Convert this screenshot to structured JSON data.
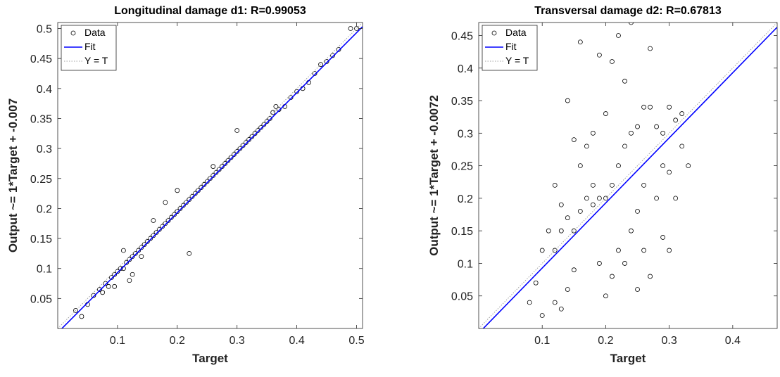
{
  "chart_data": [
    {
      "type": "scatter",
      "title": "Longitudinal damage d1: R=0.99053",
      "xlabel": "Target",
      "ylabel": "Output ~= 1*Target + -0.007",
      "xlim": [
        0,
        0.51
      ],
      "ylim": [
        0,
        0.51
      ],
      "xticks": [
        0.1,
        0.2,
        0.3,
        0.4,
        0.5
      ],
      "yticks": [
        0.05,
        0.1,
        0.15,
        0.2,
        0.25,
        0.3,
        0.35,
        0.4,
        0.45,
        0.5
      ],
      "grid": false,
      "legend_position": "top-left",
      "fit": {
        "slope": 1,
        "intercept": -0.007
      },
      "series": [
        {
          "name": "Data",
          "marker": "open-circle",
          "color": "#000000",
          "points": [
            [
              0.03,
              0.03
            ],
            [
              0.04,
              0.02
            ],
            [
              0.05,
              0.04
            ],
            [
              0.06,
              0.055
            ],
            [
              0.07,
              0.065
            ],
            [
              0.075,
              0.06
            ],
            [
              0.08,
              0.075
            ],
            [
              0.085,
              0.07
            ],
            [
              0.09,
              0.085
            ],
            [
              0.095,
              0.09
            ],
            [
              0.1,
              0.095
            ],
            [
              0.105,
              0.1
            ],
            [
              0.11,
              0.1
            ],
            [
              0.115,
              0.11
            ],
            [
              0.12,
              0.115
            ],
            [
              0.125,
              0.12
            ],
            [
              0.13,
              0.125
            ],
            [
              0.135,
              0.13
            ],
            [
              0.14,
              0.135
            ],
            [
              0.145,
              0.14
            ],
            [
              0.15,
              0.145
            ],
            [
              0.155,
              0.15
            ],
            [
              0.16,
              0.155
            ],
            [
              0.165,
              0.16
            ],
            [
              0.17,
              0.165
            ],
            [
              0.175,
              0.17
            ],
            [
              0.18,
              0.175
            ],
            [
              0.185,
              0.18
            ],
            [
              0.19,
              0.185
            ],
            [
              0.195,
              0.19
            ],
            [
              0.2,
              0.195
            ],
            [
              0.205,
              0.2
            ],
            [
              0.21,
              0.205
            ],
            [
              0.215,
              0.21
            ],
            [
              0.22,
              0.215
            ],
            [
              0.225,
              0.22
            ],
            [
              0.23,
              0.225
            ],
            [
              0.235,
              0.23
            ],
            [
              0.24,
              0.235
            ],
            [
              0.245,
              0.24
            ],
            [
              0.25,
              0.245
            ],
            [
              0.255,
              0.25
            ],
            [
              0.26,
              0.255
            ],
            [
              0.265,
              0.26
            ],
            [
              0.27,
              0.265
            ],
            [
              0.275,
              0.27
            ],
            [
              0.28,
              0.275
            ],
            [
              0.285,
              0.28
            ],
            [
              0.29,
              0.285
            ],
            [
              0.295,
              0.29
            ],
            [
              0.3,
              0.295
            ],
            [
              0.305,
              0.3
            ],
            [
              0.31,
              0.305
            ],
            [
              0.315,
              0.31
            ],
            [
              0.32,
              0.315
            ],
            [
              0.325,
              0.32
            ],
            [
              0.33,
              0.325
            ],
            [
              0.335,
              0.33
            ],
            [
              0.34,
              0.335
            ],
            [
              0.345,
              0.34
            ],
            [
              0.35,
              0.345
            ],
            [
              0.355,
              0.35
            ],
            [
              0.36,
              0.36
            ],
            [
              0.365,
              0.37
            ],
            [
              0.37,
              0.365
            ],
            [
              0.38,
              0.37
            ],
            [
              0.39,
              0.385
            ],
            [
              0.4,
              0.395
            ],
            [
              0.41,
              0.4
            ],
            [
              0.42,
              0.41
            ],
            [
              0.43,
              0.425
            ],
            [
              0.44,
              0.44
            ],
            [
              0.45,
              0.445
            ],
            [
              0.46,
              0.455
            ],
            [
              0.47,
              0.465
            ],
            [
              0.49,
              0.5
            ],
            [
              0.5,
              0.5
            ],
            [
              0.095,
              0.07
            ],
            [
              0.12,
              0.08
            ],
            [
              0.125,
              0.09
            ],
            [
              0.22,
              0.125
            ],
            [
              0.3,
              0.33
            ],
            [
              0.26,
              0.27
            ],
            [
              0.2,
              0.23
            ],
            [
              0.18,
              0.21
            ],
            [
              0.16,
              0.18
            ],
            [
              0.14,
              0.12
            ],
            [
              0.11,
              0.13
            ]
          ]
        }
      ]
    },
    {
      "type": "scatter",
      "title": "Transversal damage d2: R=0.67813",
      "xlabel": "Target",
      "ylabel": "Output ~= 1*Target + -0.0072",
      "xlim": [
        0,
        0.47
      ],
      "ylim": [
        0,
        0.47
      ],
      "xticks": [
        0.1,
        0.2,
        0.3,
        0.4
      ],
      "yticks": [
        0.05,
        0.1,
        0.15,
        0.2,
        0.25,
        0.3,
        0.35,
        0.4,
        0.45
      ],
      "grid": false,
      "legend_position": "top-left",
      "fit": {
        "slope": 1,
        "intercept": -0.0072
      },
      "series": [
        {
          "name": "Data",
          "marker": "open-circle",
          "color": "#000000",
          "points": [
            [
              0.1,
              0.12
            ],
            [
              0.11,
              0.15
            ],
            [
              0.12,
              0.12
            ],
            [
              0.13,
              0.15
            ],
            [
              0.14,
              0.17
            ],
            [
              0.15,
              0.15
            ],
            [
              0.16,
              0.18
            ],
            [
              0.17,
              0.2
            ],
            [
              0.18,
              0.19
            ],
            [
              0.19,
              0.2
            ],
            [
              0.2,
              0.2
            ],
            [
              0.21,
              0.22
            ],
            [
              0.22,
              0.25
            ],
            [
              0.23,
              0.28
            ],
            [
              0.24,
              0.3
            ],
            [
              0.25,
              0.31
            ],
            [
              0.26,
              0.34
            ],
            [
              0.27,
              0.34
            ],
            [
              0.28,
              0.31
            ],
            [
              0.29,
              0.3
            ],
            [
              0.3,
              0.34
            ],
            [
              0.31,
              0.32
            ],
            [
              0.32,
              0.33
            ],
            [
              0.12,
              0.04
            ],
            [
              0.13,
              0.03
            ],
            [
              0.14,
              0.06
            ],
            [
              0.15,
              0.09
            ],
            [
              0.16,
              0.25
            ],
            [
              0.17,
              0.28
            ],
            [
              0.18,
              0.22
            ],
            [
              0.19,
              0.1
            ],
            [
              0.2,
              0.05
            ],
            [
              0.21,
              0.08
            ],
            [
              0.22,
              0.12
            ],
            [
              0.23,
              0.1
            ],
            [
              0.24,
              0.15
            ],
            [
              0.25,
              0.18
            ],
            [
              0.26,
              0.12
            ],
            [
              0.27,
              0.08
            ],
            [
              0.28,
              0.2
            ],
            [
              0.29,
              0.25
            ],
            [
              0.3,
              0.12
            ],
            [
              0.31,
              0.2
            ],
            [
              0.33,
              0.25
            ],
            [
              0.14,
              0.35
            ],
            [
              0.16,
              0.44
            ],
            [
              0.19,
              0.42
            ],
            [
              0.22,
              0.45
            ],
            [
              0.24,
              0.47
            ],
            [
              0.27,
              0.43
            ],
            [
              0.23,
              0.38
            ],
            [
              0.21,
              0.41
            ],
            [
              0.08,
              0.04
            ],
            [
              0.09,
              0.07
            ],
            [
              0.1,
              0.02
            ],
            [
              0.12,
              0.22
            ],
            [
              0.13,
              0.19
            ],
            [
              0.15,
              0.29
            ],
            [
              0.2,
              0.33
            ],
            [
              0.18,
              0.3
            ],
            [
              0.26,
              0.22
            ],
            [
              0.3,
              0.24
            ],
            [
              0.32,
              0.28
            ],
            [
              0.29,
              0.14
            ],
            [
              0.25,
              0.06
            ]
          ]
        }
      ]
    }
  ],
  "legend": {
    "data_label": "Data",
    "fit_label": "Fit",
    "yt_label": "Y = T"
  },
  "colors": {
    "data_marker": "#000000",
    "fit_line": "#0000ff",
    "identity_line": "#a0a0a0",
    "axes": "#262626"
  }
}
